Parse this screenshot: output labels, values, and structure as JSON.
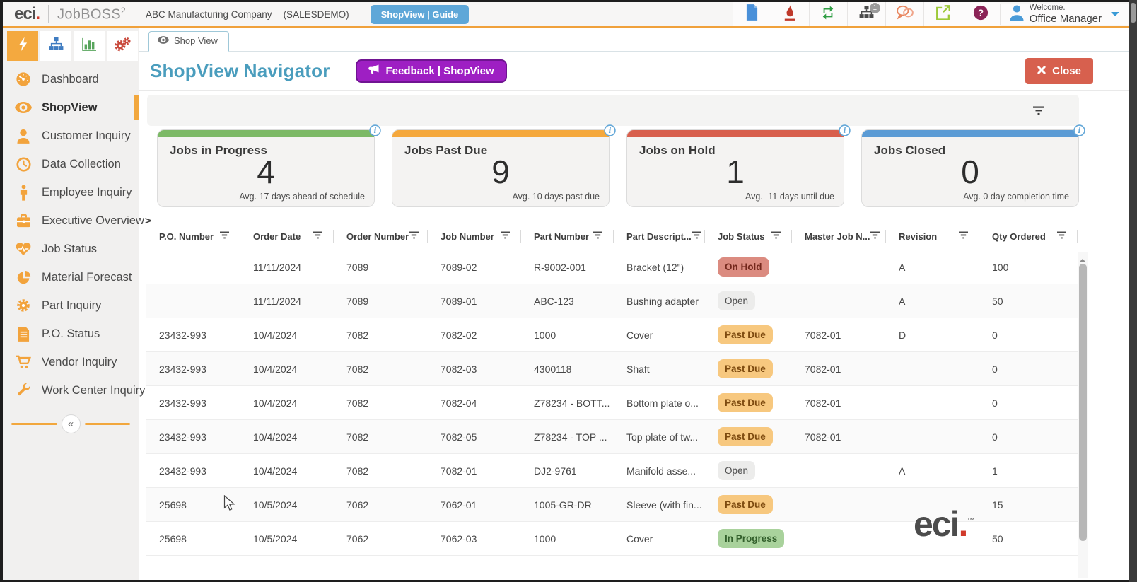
{
  "topbar": {
    "logo_primary": "eci",
    "logo_suffix": ".",
    "logo_product": "JobBOSS",
    "logo_product_sup": "2",
    "company_name": "ABC Manufacturing Company",
    "environment": "(SALESDEMO)",
    "guide_button_label": "ShopView | Guide",
    "notification_badge": "1",
    "icons": [
      "file-icon",
      "flame-icon",
      "refresh-icon",
      "org-chart-icon",
      "chat-icon",
      "external-link-icon",
      "help-icon"
    ],
    "welcome_label": "Welcome.",
    "user_name": "Office Manager"
  },
  "sidebar": {
    "tabs": [
      {
        "icon": "lightning-icon",
        "active": true
      },
      {
        "icon": "org-chart-icon",
        "active": false
      },
      {
        "icon": "bar-chart-icon",
        "active": false
      },
      {
        "icon": "gears-icon",
        "active": false
      }
    ],
    "items": [
      {
        "label": "Dashboard",
        "icon": "gauge-icon",
        "active": false
      },
      {
        "label": "ShopView",
        "icon": "eye-icon",
        "active": true
      },
      {
        "label": "Customer Inquiry",
        "icon": "user-icon",
        "active": false
      },
      {
        "label": "Data Collection",
        "icon": "clock-icon",
        "active": false
      },
      {
        "label": "Employee Inquiry",
        "icon": "person-icon",
        "active": false
      },
      {
        "label": "Executive Overview",
        "chevron": ">",
        "icon": "briefcase-icon",
        "active": false
      },
      {
        "label": "Job Status",
        "icon": "heart-pulse-icon",
        "active": false
      },
      {
        "label": "Material Forecast",
        "icon": "pie-chart-icon",
        "active": false
      },
      {
        "label": "Part Inquiry",
        "icon": "gear-icon",
        "active": false
      },
      {
        "label": "P.O. Status",
        "icon": "document-icon",
        "active": false
      },
      {
        "label": "Vendor Inquiry",
        "icon": "cart-icon",
        "active": false
      },
      {
        "label": "Work Center Inquiry",
        "icon": "wrench-icon",
        "active": false
      }
    ],
    "collapse_glyph": "«"
  },
  "main": {
    "tab_label": "Shop View",
    "page_title": "ShopView Navigator",
    "feedback_button_label": "Feedback | ShopView",
    "close_button_label": "Close",
    "cards": [
      {
        "title": "Jobs in Progress",
        "value": "4",
        "subtitle": "Avg. 17 days ahead of schedule",
        "color": "#7cb966"
      },
      {
        "title": "Jobs Past Due",
        "value": "9",
        "subtitle": "Avg. 10 days past due",
        "color": "#f5a83c"
      },
      {
        "title": "Jobs on Hold",
        "value": "1",
        "subtitle": "Avg. -11 days until due",
        "color": "#d85f4d"
      },
      {
        "title": "Jobs Closed",
        "value": "0",
        "subtitle": "Avg. 0 day completion time",
        "color": "#5b9bd5"
      }
    ],
    "table": {
      "columns": [
        "P.O. Number",
        "Order Date",
        "Order Number",
        "Job Number",
        "Part Number",
        "Part Descript...",
        "Job Status",
        "Master Job N...",
        "Revision",
        "Qty Ordered"
      ],
      "rows": [
        {
          "po": "",
          "order_date": "11/11/2024",
          "order_number": "7089",
          "job_number": "7089-02",
          "part_number": "R-9002-001",
          "part_desc": "Bracket (12\")",
          "status": "On Hold",
          "master_job": "",
          "revision": "A",
          "qty": "100"
        },
        {
          "po": "",
          "order_date": "11/11/2024",
          "order_number": "7089",
          "job_number": "7089-01",
          "part_number": "ABC-123",
          "part_desc": "Bushing adapter",
          "status": "Open",
          "master_job": "",
          "revision": "A",
          "qty": "50"
        },
        {
          "po": "23432-993",
          "order_date": "10/4/2024",
          "order_number": "7082",
          "job_number": "7082-02",
          "part_number": "1000",
          "part_desc": "Cover",
          "status": "Past Due",
          "master_job": "7082-01",
          "revision": "D",
          "qty": "0"
        },
        {
          "po": "23432-993",
          "order_date": "10/4/2024",
          "order_number": "7082",
          "job_number": "7082-03",
          "part_number": "4300118",
          "part_desc": "Shaft",
          "status": "Past Due",
          "master_job": "7082-01",
          "revision": "",
          "qty": "0"
        },
        {
          "po": "23432-993",
          "order_date": "10/4/2024",
          "order_number": "7082",
          "job_number": "7082-04",
          "part_number": "Z78234 - BOTT...",
          "part_desc": "Bottom plate o...",
          "status": "Past Due",
          "master_job": "7082-01",
          "revision": "",
          "qty": "0"
        },
        {
          "po": "23432-993",
          "order_date": "10/4/2024",
          "order_number": "7082",
          "job_number": "7082-05",
          "part_number": "Z78234 - TOP ...",
          "part_desc": "Top plate of tw...",
          "status": "Past Due",
          "master_job": "7082-01",
          "revision": "",
          "qty": "0"
        },
        {
          "po": "23432-993",
          "order_date": "10/4/2024",
          "order_number": "7082",
          "job_number": "7082-01",
          "part_number": "DJ2-9761",
          "part_desc": "Manifold asse...",
          "status": "Open",
          "master_job": "",
          "revision": "A",
          "qty": "1"
        },
        {
          "po": "25698",
          "order_date": "10/5/2024",
          "order_number": "7062",
          "job_number": "7062-01",
          "part_number": "1005-GR-DR",
          "part_desc": "Sleeve (with fin...",
          "status": "Past Due",
          "master_job": "",
          "revision": "",
          "qty": "15"
        },
        {
          "po": "25698",
          "order_date": "10/5/2024",
          "order_number": "7062",
          "job_number": "7062-03",
          "part_number": "1000",
          "part_desc": "Cover",
          "status": "In Progress",
          "master_job": "",
          "revision": "",
          "qty": "50"
        }
      ],
      "status_styles": {
        "On Hold": {
          "bg": "#db8b80",
          "fg": "#74281d",
          "weight": "600"
        },
        "Open": {
          "bg": "#ececeb",
          "fg": "#4f4f4f",
          "weight": "400"
        },
        "Past Due": {
          "bg": "#f7c87f",
          "fg": "#7d4a0f",
          "weight": "600"
        },
        "In Progress": {
          "bg": "#a9d29c",
          "fg": "#33602c",
          "weight": "600"
        }
      }
    }
  },
  "watermark": {
    "text": "eci",
    "suffix": ".",
    "tm": "™"
  },
  "colors": {
    "accent_orange": "#f0a13b",
    "title_blue": "#4a9dbd",
    "feedback_purple": "#9e1fc3",
    "close_red": "#d7604e",
    "guide_blue": "#5ea7d8",
    "sidebar_icon_orange": "#f2a33c"
  }
}
